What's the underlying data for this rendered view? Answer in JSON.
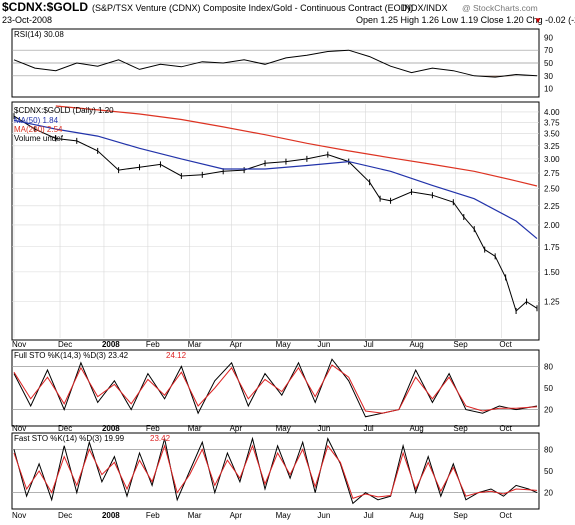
{
  "header": {
    "symbol": "$CDNX:$GOLD",
    "description": "(S&P/TSX Venture (CDNX) Composite Index/Gold - Continuous Contract (EOD))",
    "exchange": "INDX/INDX",
    "date": "23-Oct-2008",
    "watermark": "@ StockCharts.com",
    "quote_line": "Open 1.25  High 1.26  Low 1.19  Close 1.20  Chg -0.02 (-2.00%)",
    "down_arrow": "▼"
  },
  "colors": {
    "price": "#000000",
    "ma50": "#2233aa",
    "ma200": "#dd3322",
    "rsi_fill": "#8b6b5b",
    "sto_k": "#000000",
    "sto_d": "#dd2222",
    "grid": "#d8d8d8",
    "negative": "#cc0000"
  },
  "chart_data": [
    {
      "type": "line",
      "panel": "rsi",
      "legend": [
        "RSI(14) 30.08"
      ],
      "ylim": [
        0,
        100
      ],
      "yticks": [
        10,
        30,
        50,
        70,
        90
      ],
      "reference_lines": [
        30,
        50,
        70
      ],
      "series": [
        {
          "name": "RSI(14)",
          "x": [
            0,
            10,
            20,
            30,
            40,
            50,
            60,
            70,
            80,
            90,
            100,
            110,
            120,
            130,
            140,
            150,
            160,
            170,
            180,
            190,
            200,
            210,
            220,
            230,
            240,
            250
          ],
          "values": [
            55,
            42,
            38,
            50,
            45,
            55,
            40,
            48,
            44,
            52,
            50,
            55,
            48,
            58,
            62,
            68,
            70,
            60,
            45,
            35,
            42,
            38,
            30,
            28,
            32,
            30
          ]
        }
      ]
    },
    {
      "type": "line",
      "panel": "price",
      "legend": [
        "$CDNX:$GOLD (Daily) 1.20",
        "MA(50) 1.84",
        "MA(200) 2.54",
        "Volume undef"
      ],
      "yscale": "log",
      "ylim": [
        1.0,
        4.2
      ],
      "yticks": [
        1.25,
        1.5,
        1.75,
        2.0,
        2.25,
        2.5,
        2.75,
        3.0,
        3.25,
        3.5,
        3.75,
        4.0
      ],
      "xlabels": [
        "Nov",
        "Dec",
        "2008",
        "Feb",
        "Mar",
        "Apr",
        "May",
        "Jun",
        "Jul",
        "Aug",
        "Sep",
        "Oct"
      ],
      "xlabel_pos": [
        0,
        22,
        43,
        64,
        84,
        104,
        126,
        146,
        168,
        190,
        211,
        233
      ],
      "series": [
        {
          "name": "$CDNX:$GOLD",
          "x": [
            0,
            10,
            20,
            30,
            40,
            50,
            60,
            70,
            80,
            90,
            100,
            110,
            120,
            130,
            140,
            150,
            160,
            170,
            175,
            180,
            190,
            200,
            210,
            215,
            220,
            225,
            230,
            235,
            240,
            245,
            250
          ],
          "values": [
            3.9,
            3.6,
            3.4,
            3.35,
            3.15,
            2.8,
            2.85,
            2.9,
            2.7,
            2.72,
            2.78,
            2.8,
            2.92,
            2.95,
            3.0,
            3.08,
            2.95,
            2.6,
            2.35,
            2.32,
            2.45,
            2.4,
            2.3,
            2.1,
            1.95,
            1.72,
            1.65,
            1.45,
            1.18,
            1.25,
            1.2
          ]
        },
        {
          "name": "MA(50)",
          "x": [
            0,
            20,
            40,
            60,
            80,
            100,
            120,
            140,
            160,
            180,
            200,
            220,
            240,
            250
          ],
          "values": [
            3.8,
            3.6,
            3.45,
            3.2,
            3.0,
            2.82,
            2.82,
            2.88,
            2.95,
            2.78,
            2.55,
            2.35,
            2.05,
            1.84
          ]
        },
        {
          "name": "MA(200)",
          "x": [
            20,
            40,
            60,
            80,
            100,
            120,
            140,
            160,
            180,
            200,
            220,
            240,
            250
          ],
          "values": [
            4.15,
            4.05,
            3.95,
            3.82,
            3.65,
            3.48,
            3.3,
            3.15,
            3.02,
            2.9,
            2.78,
            2.62,
            2.54
          ]
        }
      ]
    },
    {
      "type": "line",
      "panel": "full_sto",
      "legend": [
        "Full STO %K(14,3) %D(3) 23.42",
        "24.12"
      ],
      "ylim": [
        0,
        100
      ],
      "yticks": [
        20,
        50,
        80
      ],
      "reference_lines": [
        20,
        80
      ],
      "series": [
        {
          "name": "%K",
          "x": [
            0,
            8,
            16,
            24,
            32,
            40,
            48,
            56,
            64,
            72,
            80,
            88,
            96,
            104,
            112,
            120,
            128,
            136,
            144,
            152,
            160,
            168,
            176,
            184,
            192,
            200,
            208,
            216,
            224,
            232,
            240,
            250
          ],
          "values": [
            70,
            25,
            75,
            20,
            85,
            30,
            60,
            20,
            70,
            35,
            80,
            15,
            60,
            85,
            25,
            70,
            40,
            85,
            30,
            90,
            60,
            10,
            15,
            20,
            75,
            30,
            70,
            20,
            15,
            25,
            20,
            25
          ]
        },
        {
          "name": "%D",
          "x": [
            0,
            8,
            16,
            24,
            32,
            40,
            48,
            56,
            64,
            72,
            80,
            88,
            96,
            104,
            112,
            120,
            128,
            136,
            144,
            152,
            160,
            168,
            176,
            184,
            192,
            200,
            208,
            216,
            224,
            232,
            240,
            250
          ],
          "values": [
            72,
            35,
            65,
            28,
            78,
            38,
            55,
            28,
            62,
            40,
            72,
            25,
            50,
            78,
            35,
            62,
            45,
            78,
            38,
            82,
            65,
            18,
            15,
            20,
            65,
            35,
            65,
            25,
            18,
            22,
            22,
            24
          ]
        }
      ]
    },
    {
      "type": "line",
      "panel": "fast_sto",
      "legend": [
        "Fast STO %K(14) %D(3) 19.99",
        "23.42"
      ],
      "ylim": [
        0,
        100
      ],
      "yticks": [
        20,
        50,
        80
      ],
      "reference_lines": [
        20,
        80
      ],
      "series": [
        {
          "name": "%K",
          "x": [
            0,
            6,
            12,
            18,
            24,
            30,
            36,
            42,
            48,
            54,
            60,
            66,
            72,
            78,
            84,
            90,
            96,
            102,
            108,
            114,
            120,
            126,
            132,
            138,
            144,
            150,
            156,
            162,
            168,
            174,
            180,
            186,
            192,
            198,
            204,
            210,
            216,
            222,
            228,
            234,
            240,
            246,
            250
          ],
          "values": [
            80,
            15,
            60,
            10,
            85,
            20,
            90,
            35,
            70,
            15,
            75,
            30,
            95,
            10,
            50,
            90,
            20,
            75,
            35,
            95,
            25,
            85,
            40,
            90,
            20,
            95,
            60,
            5,
            20,
            10,
            15,
            85,
            20,
            70,
            15,
            60,
            10,
            20,
            25,
            15,
            30,
            25,
            20
          ]
        },
        {
          "name": "%D",
          "x": [
            0,
            6,
            12,
            18,
            24,
            30,
            36,
            42,
            48,
            54,
            60,
            66,
            72,
            78,
            84,
            90,
            96,
            102,
            108,
            114,
            120,
            126,
            132,
            138,
            144,
            150,
            156,
            162,
            168,
            174,
            180,
            186,
            192,
            198,
            204,
            210,
            216,
            222,
            228,
            234,
            240,
            246,
            250
          ],
          "values": [
            75,
            25,
            50,
            20,
            70,
            30,
            80,
            45,
            62,
            25,
            65,
            35,
            85,
            20,
            45,
            80,
            30,
            65,
            40,
            85,
            32,
            75,
            45,
            80,
            28,
            85,
            62,
            12,
            18,
            14,
            16,
            75,
            25,
            62,
            22,
            55,
            15,
            20,
            22,
            18,
            25,
            24,
            23
          ]
        }
      ]
    }
  ]
}
